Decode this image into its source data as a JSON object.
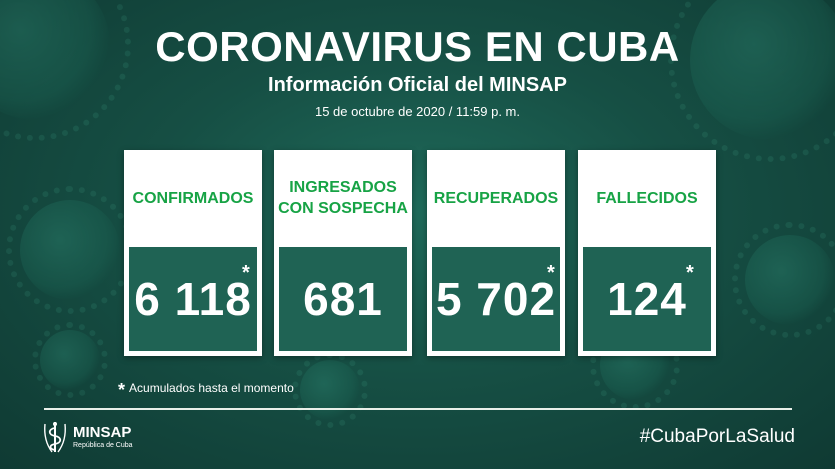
{
  "header": {
    "title": "CORONAVIRUS EN CUBA",
    "subtitle": "Información Oficial del MINSAP",
    "date": "15 de octubre de 2020 / 11:59 p. m."
  },
  "cards": [
    {
      "label": "CONFIRMADOS",
      "value": "6 118",
      "star": "*"
    },
    {
      "label": "INGRESADOS\nCON SOSPECHA",
      "value": "681",
      "star": ""
    },
    {
      "label": "RECUPERADOS",
      "value": "5 702",
      "star": "*"
    },
    {
      "label": "FALLECIDOS",
      "value": "124",
      "star": "*"
    }
  ],
  "note": {
    "star": "*",
    "text": "Acumulados hasta el momento"
  },
  "footer": {
    "logo_name": "MINSAP",
    "logo_sub": "República de Cuba",
    "hashtag": "#CubaPorLaSalud"
  },
  "colors": {
    "background": "#164f44",
    "label_green": "#17a345",
    "value_box": "#1f6354"
  },
  "icons": [
    "virus-background-decoration",
    "minsap-emblem-icon"
  ]
}
